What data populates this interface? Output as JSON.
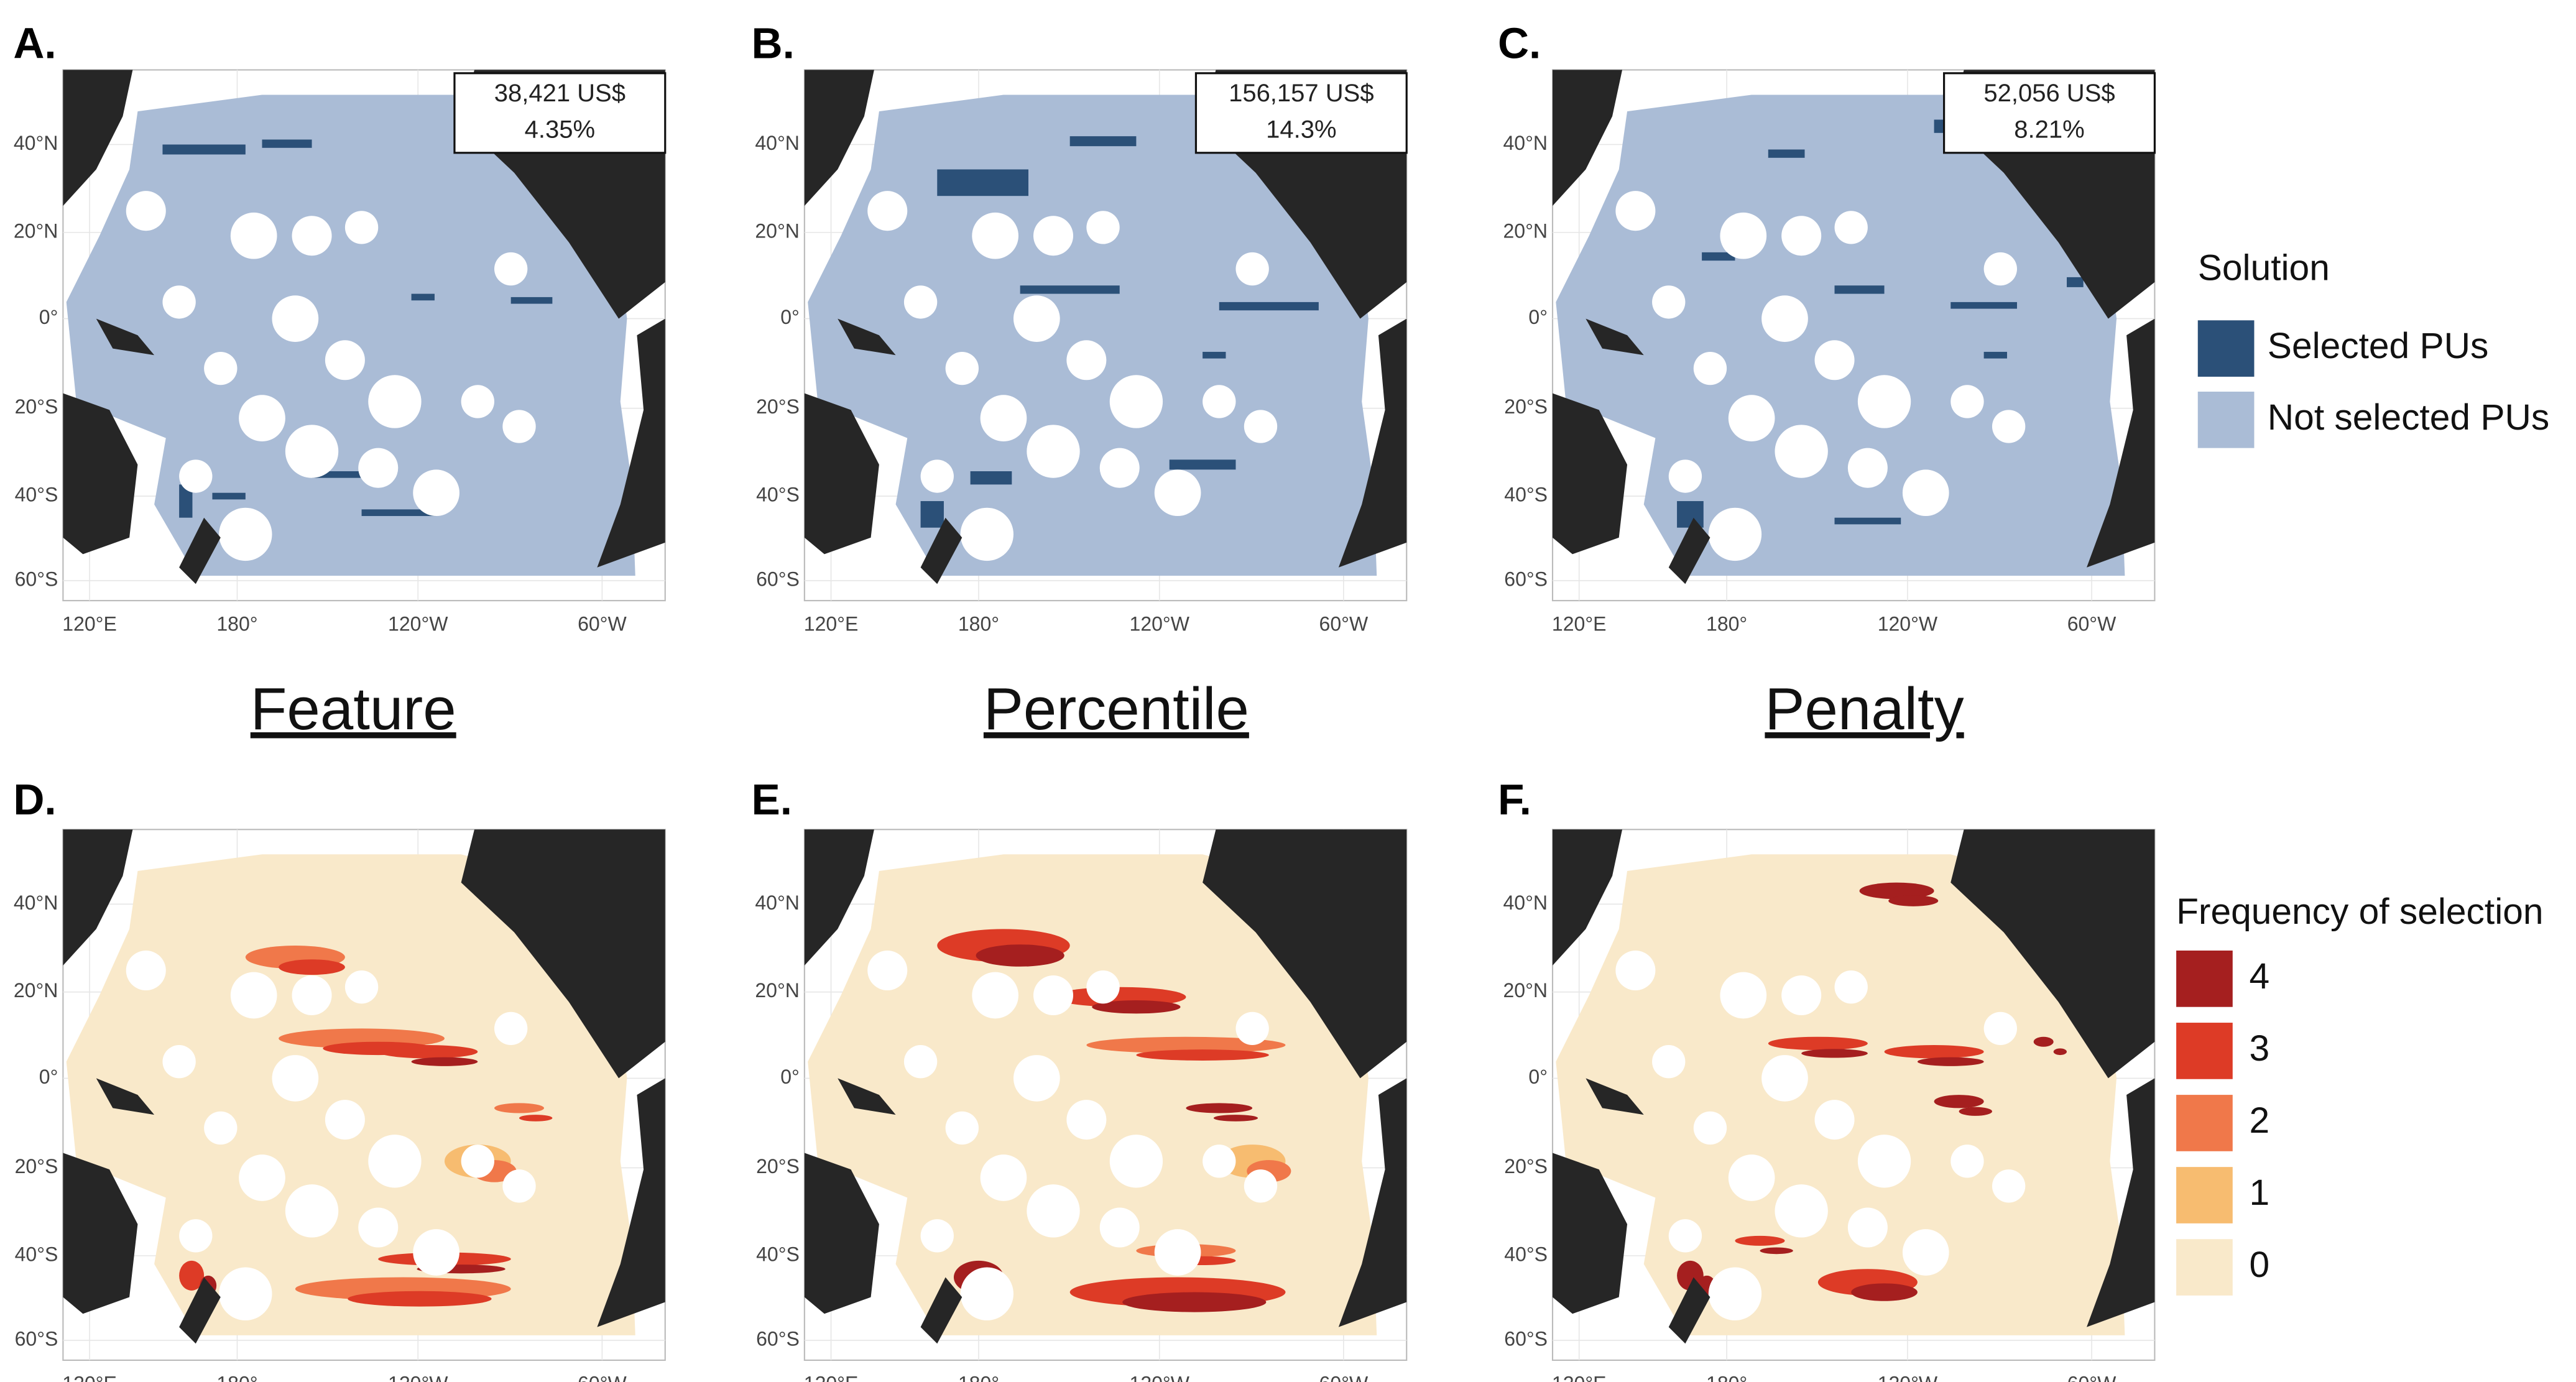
{
  "panels": [
    {
      "label": "A.",
      "cost": "38,421 US$",
      "percent": "4.35%"
    },
    {
      "label": "B.",
      "cost": "156,157 US$",
      "percent": "14.3%"
    },
    {
      "label": "C.",
      "cost": "52,056 US$",
      "percent": "8.21%"
    },
    {
      "label": "D."
    },
    {
      "label": "E."
    },
    {
      "label": "F."
    }
  ],
  "columns": [
    "Feature",
    "Percentile",
    "Penalty"
  ],
  "y_axis_labels": [
    "40°N",
    "20°N",
    "0°",
    "20°S",
    "40°S",
    "60°S"
  ],
  "x_axis_labels": [
    "120°E",
    "180°",
    "120°W",
    "60°W"
  ],
  "legend_solution": {
    "title": "Solution",
    "items": [
      "Selected PUs",
      "Not selected PUs"
    ]
  },
  "legend_frequency": {
    "title": "Frequency of selection",
    "items": [
      "4",
      "3",
      "2",
      "1",
      "0"
    ]
  }
}
